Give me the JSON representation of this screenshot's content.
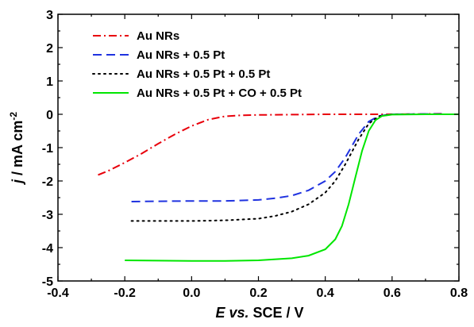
{
  "chart_data": {
    "type": "line",
    "title": "",
    "xlabel_italic": "E vs.",
    "xlabel_rest": " SCE / V",
    "ylabel_italic": "j",
    "ylabel_rest": " / mA cm",
    "ylabel_sup": "-2",
    "xlim": [
      -0.4,
      0.8
    ],
    "ylim": [
      -5,
      3
    ],
    "xticks": [
      "-0.4",
      "-0.2",
      "0.0",
      "0.2",
      "0.4",
      "0.6",
      "0.8"
    ],
    "yticks": [
      "-5",
      "-4",
      "-3",
      "-2",
      "-1",
      "0",
      "1",
      "2",
      "3"
    ],
    "grid": false,
    "legend_position": "top-left",
    "series": [
      {
        "name": "Au NRs",
        "color": "#e8000b",
        "dash": "dashdot",
        "x": [
          -0.28,
          -0.25,
          -0.2,
          -0.15,
          -0.1,
          -0.05,
          0.0,
          0.05,
          0.1,
          0.15,
          0.2,
          0.3,
          0.4,
          0.5,
          0.6,
          0.7,
          0.75
        ],
        "y": [
          -1.82,
          -1.7,
          -1.45,
          -1.18,
          -0.88,
          -0.6,
          -0.35,
          -0.16,
          -0.06,
          -0.03,
          -0.02,
          -0.01,
          0.0,
          0.0,
          0.0,
          0.01,
          0.02
        ]
      },
      {
        "name": "Au NRs + 0.5 Pt",
        "color": "#1f32e0",
        "dash": "dash",
        "x": [
          -0.18,
          -0.1,
          0.0,
          0.1,
          0.2,
          0.25,
          0.3,
          0.35,
          0.4,
          0.43,
          0.46,
          0.5,
          0.53,
          0.56,
          0.6,
          0.7,
          0.75
        ],
        "y": [
          -2.62,
          -2.61,
          -2.6,
          -2.6,
          -2.57,
          -2.52,
          -2.44,
          -2.28,
          -2.0,
          -1.72,
          -1.3,
          -0.6,
          -0.22,
          -0.05,
          0.0,
          0.01,
          0.01
        ]
      },
      {
        "name": "Au NRs + 0.5 Pt + 0.5 Pt",
        "color": "#000000",
        "dash": "dot",
        "x": [
          -0.18,
          -0.1,
          0.0,
          0.1,
          0.2,
          0.25,
          0.3,
          0.35,
          0.4,
          0.43,
          0.46,
          0.5,
          0.53,
          0.56,
          0.6,
          0.7,
          0.75
        ],
        "y": [
          -3.2,
          -3.2,
          -3.2,
          -3.18,
          -3.13,
          -3.05,
          -2.92,
          -2.7,
          -2.35,
          -2.0,
          -1.5,
          -0.75,
          -0.28,
          -0.06,
          0.0,
          0.0,
          0.0
        ]
      },
      {
        "name": "Au NRs + 0.5 Pt + CO + 0.5 Pt",
        "color": "#00e600",
        "dash": "solid",
        "x": [
          -0.2,
          -0.1,
          0.0,
          0.1,
          0.2,
          0.3,
          0.35,
          0.4,
          0.43,
          0.45,
          0.47,
          0.49,
          0.51,
          0.53,
          0.55,
          0.57,
          0.6,
          0.7,
          0.8
        ],
        "y": [
          -4.38,
          -4.39,
          -4.4,
          -4.4,
          -4.38,
          -4.32,
          -4.24,
          -4.05,
          -3.75,
          -3.35,
          -2.7,
          -1.9,
          -1.1,
          -0.5,
          -0.18,
          -0.05,
          -0.01,
          0.0,
          0.0
        ]
      }
    ]
  }
}
